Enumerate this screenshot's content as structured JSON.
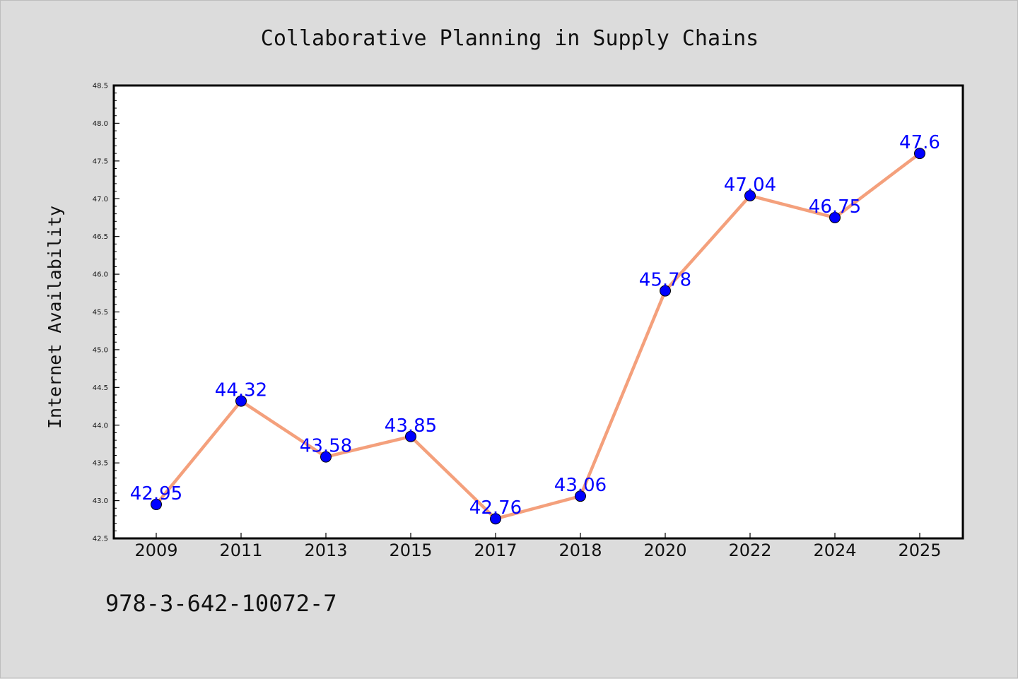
{
  "chart_data": {
    "type": "line",
    "title": "Collaborative Planning in Supply Chains",
    "xlabel": "",
    "ylabel": "Internet Availability",
    "categories": [
      "2009",
      "2011",
      "2013",
      "2015",
      "2017",
      "2018",
      "2020",
      "2022",
      "2024",
      "2025"
    ],
    "series": [
      {
        "values": [
          42.95,
          44.32,
          43.58,
          43.85,
          42.76,
          43.06,
          45.78,
          47.04,
          46.75,
          47.6
        ],
        "labels": [
          "42.95",
          "44.32",
          "43.58",
          "43.85",
          "42.76",
          "43.06",
          "45.78",
          "47.04",
          "46.75",
          "47.6"
        ]
      }
    ],
    "ylim": [
      42.5,
      48.5
    ],
    "yticks": [
      "42.5",
      "43.0",
      "43.5",
      "44.0",
      "44.5",
      "45.0",
      "45.5",
      "46.0",
      "46.5",
      "47.0",
      "47.5",
      "48.0",
      "48.5"
    ],
    "grid": false,
    "legend": "none",
    "colors": {
      "line": "#f4a07c",
      "marker": "#0000ff",
      "label": "#0000ff",
      "plot_background": "#ffffff",
      "figure_background": "#dcdcdc"
    }
  },
  "footer": {
    "isbn": "978-3-642-10072-7"
  }
}
